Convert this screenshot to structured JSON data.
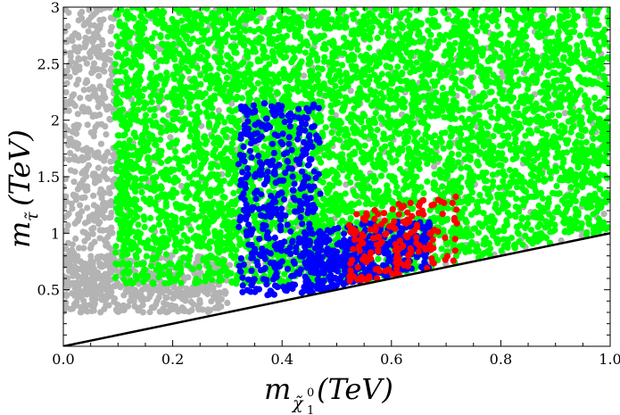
{
  "chart_data": {
    "type": "scatter",
    "title": "",
    "xlabel": "m",
    "xlabel_sub": "χ̃",
    "xlabel_subsub": "1",
    "xlabel_sup": "0",
    "xlabel_unit": "(TeV)",
    "ylabel": "m",
    "ylabel_sub": "τ̃",
    "ylabel_unit": "(TeV)",
    "xlim": [
      0.0,
      1.0
    ],
    "ylim": [
      0.0,
      3.0
    ],
    "xticks": [
      0.0,
      0.2,
      0.4,
      0.6,
      0.8,
      1.0
    ],
    "xtick_labels": [
      "0.0",
      "0.2",
      "0.4",
      "0.6",
      "0.8",
      "1.0"
    ],
    "yticks": [
      0.5,
      1.0,
      1.5,
      2.0,
      2.5,
      3.0
    ],
    "ytick_labels": [
      "0.5",
      "1",
      "1.5",
      "2",
      "2.5",
      "3"
    ],
    "grid": false,
    "legend": "none",
    "boundary_line": {
      "x": [
        0.0,
        1.0
      ],
      "y": [
        0.0,
        1.0
      ],
      "color": "#000000"
    },
    "series": [
      {
        "color": "#b3b3b3",
        "description_regions": [
          {
            "x": [
              0.0,
              0.095
            ],
            "y": [
              0.45,
              3.0
            ]
          },
          {
            "x": [
              0.0,
              0.3
            ],
            "y": [
              0.3,
              0.8
            ]
          },
          {
            "x": [
              0.1,
              1.0
            ],
            "y": [
              0.5,
              3.0
            ]
          }
        ],
        "n_points": 1400
      },
      {
        "color": "#00ff00",
        "description_regions": [
          {
            "x": [
              0.095,
              1.0
            ],
            "y": [
              0.55,
              3.0
            ]
          }
        ],
        "n_points": 5200
      },
      {
        "color": "#0000ff",
        "description_regions": [
          {
            "x": [
              0.32,
              0.47
            ],
            "y": [
              0.45,
              2.15
            ]
          },
          {
            "x": [
              0.44,
              0.67
            ],
            "y": [
              0.45,
              1.1
            ]
          }
        ],
        "n_points": 820
      },
      {
        "color": "#ff0000",
        "description_regions": [
          {
            "x": [
              0.52,
              0.72
            ],
            "y": [
              0.5,
              1.35
            ]
          }
        ],
        "n_points": 160
      }
    ]
  }
}
